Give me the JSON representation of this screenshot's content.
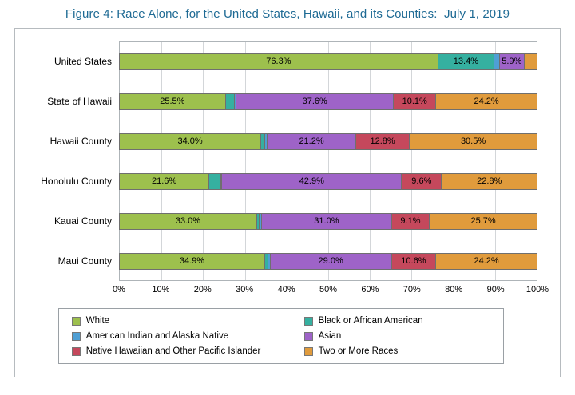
{
  "figure": {
    "title": "Figure 4: Race Alone, for the United States, Hawaii, and its Counties:  July 1, 2019",
    "title_color": "#1E6A94"
  },
  "chart_data": {
    "type": "bar",
    "orientation": "horizontal",
    "stacked": true,
    "title": "Figure 4: Race Alone, for the United States, Hawaii, and its Counties:  July 1, 2019",
    "categories": [
      "United States",
      "State of Hawaii",
      "Hawaii County",
      "Honolulu County",
      "Kauai County",
      "Maui County"
    ],
    "series": [
      {
        "name": "White",
        "color": "#9DC04D",
        "values": [
          76.3,
          25.5,
          34.0,
          21.6,
          33.0,
          34.9
        ]
      },
      {
        "name": "Black or African American",
        "color": "#35B0A0",
        "values": [
          13.4,
          2.2,
          1.0,
          2.8,
          0.6,
          0.8
        ]
      },
      {
        "name": "American Indian and Alaska Native",
        "color": "#4F9FD4",
        "values": [
          1.3,
          0.4,
          0.5,
          0.3,
          0.6,
          0.5
        ]
      },
      {
        "name": "Asian",
        "color": "#9E63C8",
        "values": [
          5.9,
          37.6,
          21.2,
          42.9,
          31.0,
          29.0
        ]
      },
      {
        "name": "Native Hawaiian and Other Pacific Islander",
        "color": "#C5485C",
        "values": [
          0.2,
          10.1,
          12.8,
          9.6,
          9.1,
          10.6
        ]
      },
      {
        "name": "Two or More Races",
        "color": "#E09B3C",
        "values": [
          2.9,
          24.2,
          30.5,
          22.8,
          25.7,
          24.2
        ]
      }
    ],
    "data_label_format": "percent_one_decimal",
    "label_min_value": 5,
    "x_ticks": [
      "0%",
      "10%",
      "20%",
      "30%",
      "40%",
      "50%",
      "60%",
      "70%",
      "80%",
      "90%",
      "100%"
    ],
    "xlim": [
      0,
      100
    ],
    "grid": true,
    "legend_position": "bottom"
  }
}
